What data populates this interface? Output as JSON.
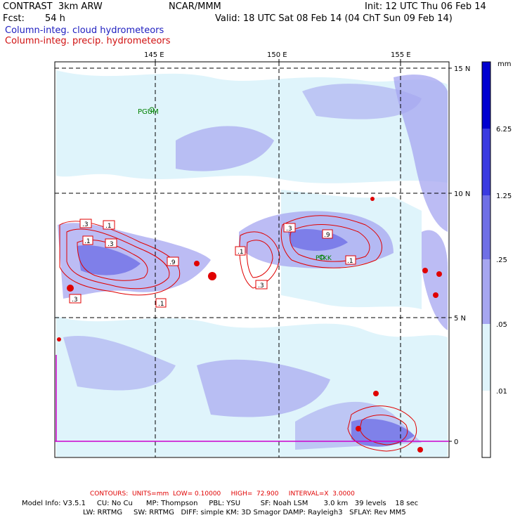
{
  "header": {
    "model": "CONTRAST  3km ARW",
    "org": "NCAR/MMM",
    "init": "Init: 12 UTC Thu 06 Feb 14",
    "fcst_label": "Fcst:",
    "fcst_value": "54 h",
    "valid": "Valid: 18 UTC Sat 08 Feb 14 (04 ChT Sun 09 Feb 14)",
    "field_cloud": "Column-integ. cloud hydrometeors",
    "field_precip": "Column-integ. precip. hydrometeors"
  },
  "map": {
    "lon_labels": [
      "145 E",
      "150 E",
      "155 E"
    ],
    "lat_labels": [
      "15 N",
      "10 N",
      "5 N",
      "0"
    ],
    "stations": [
      "PGUM",
      "PTKK"
    ],
    "contour_labels": [
      ".3",
      ".1",
      ".1",
      ".3",
      ".9",
      ".3",
      ".1",
      ".1",
      ".3",
      ".9",
      ".1",
      ".3"
    ]
  },
  "colorbar": {
    "unit": "mm",
    "levels": [
      "6.25",
      "1.25",
      ".25",
      ".05",
      ".01"
    ],
    "colors": [
      "#0000d0",
      "#3a3ae0",
      "#6f6fe6",
      "#a6a6f0",
      "#dff4fb",
      "#ffffff"
    ]
  },
  "footer": {
    "contours": "CONTOURS:  UNITS=mm  LOW= 0.10000     HIGH=  72.900     INTERVAL=X  3.0000",
    "model_info_1": "Model Info: V3.5.1     CU: No Cu      MP: Thompson     PBL: YSU         SF: Noah LSM       3.0 km   39 levels    18 sec",
    "model_info_2": "LW: RRTMG     SW: RRTMG   DIFF: simple KM: 3D Smagor DAMP: Rayleigh3   SFLAY: Rev MM5"
  }
}
